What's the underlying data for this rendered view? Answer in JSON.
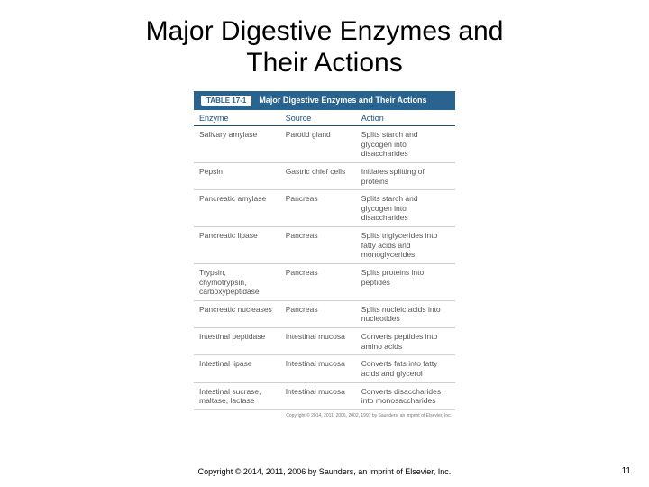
{
  "title_line1": "Major Digestive Enzymes and",
  "title_line2": "Their Actions",
  "table": {
    "header_tag": "TABLE 17-1",
    "header_title": "Major Digestive Enzymes and Their Actions",
    "columns": [
      "Enzyme",
      "Source",
      "Action"
    ],
    "colors": {
      "header_bg": "#29638f",
      "header_fg": "#ffffff",
      "col_header_fg": "#1d4e7a",
      "rule": "#cfcfcf",
      "heavy_rule": "#1d4e7a",
      "body_text": "#555555"
    },
    "rows": [
      {
        "cells": [
          "Salivary amylase",
          "Parotid gland",
          "Splits starch and glycogen into disaccharides"
        ],
        "section_break": false
      },
      {
        "cells": [
          "Pepsin",
          "Gastric chief cells",
          "Initiates splitting of proteins"
        ],
        "section_break": false
      },
      {
        "cells": [
          "Pancreatic amylase",
          "Pancreas",
          "Splits starch and glycogen into disaccharides"
        ],
        "section_break": false
      },
      {
        "cells": [
          "Pancreatic lipase",
          "Pancreas",
          "Splits triglycerides into fatty acids and monoglycerides"
        ],
        "section_break": false
      },
      {
        "cells": [
          "Trypsin, chymotrypsin, carboxypeptidase",
          "Pancreas",
          "Splits proteins into peptides"
        ],
        "section_break": true
      },
      {
        "cells": [
          "Pancreatic nucleases",
          "Pancreas",
          "Splits nucleic acids into nucleotides"
        ],
        "section_break": false
      },
      {
        "cells": [
          "Intestinal peptidase",
          "Intestinal mucosa",
          "Converts peptides into amino acids"
        ],
        "section_break": false
      },
      {
        "cells": [
          "Intestinal lipase",
          "Intestinal mucosa",
          "Converts fats into fatty acids and glycerol"
        ],
        "section_break": false
      },
      {
        "cells": [
          "Intestinal sucrase, maltase, lactase",
          "Intestinal mucosa",
          "Converts disaccharides into monosaccharides"
        ],
        "section_break": true
      }
    ],
    "inner_copyright": "Copyright © 2014, 2011, 2006, 2002, 1997 by Saunders, an imprint of Elsevier, Inc."
  },
  "footer_copyright": "Copyright © 2014, 2011, 2006 by Saunders, an imprint of Elsevier, Inc.",
  "page_number": "11"
}
